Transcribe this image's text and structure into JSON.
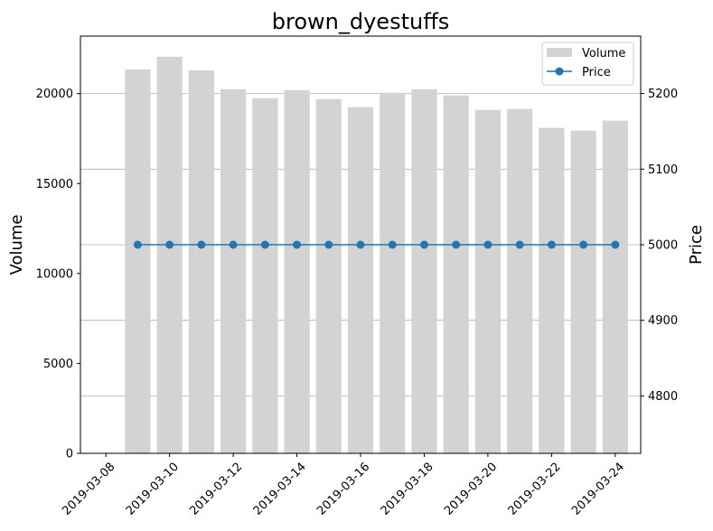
{
  "chart_data": {
    "type": "bar+line",
    "title": "brown_dyestuffs",
    "xlabel": "",
    "ylabel_left": "Volume",
    "ylabel_right": "Price",
    "dates": [
      "2019-03-09",
      "2019-03-10",
      "2019-03-11",
      "2019-03-12",
      "2019-03-13",
      "2019-03-14",
      "2019-03-15",
      "2019-03-16",
      "2019-03-17",
      "2019-03-18",
      "2019-03-19",
      "2019-03-20",
      "2019-03-21",
      "2019-03-22",
      "2019-03-23",
      "2019-03-24"
    ],
    "x_ticks": [
      "2019-03-08",
      "2019-03-10",
      "2019-03-12",
      "2019-03-14",
      "2019-03-16",
      "2019-03-18",
      "2019-03-20",
      "2019-03-22",
      "2019-03-24"
    ],
    "xlim": [
      "2019-03-08",
      "2019-03-24"
    ],
    "series": [
      {
        "name": "Volume",
        "kind": "bar",
        "axis": "left",
        "color": "#d3d3d3",
        "values": [
          21350,
          22050,
          21300,
          20250,
          19750,
          20200,
          19700,
          19250,
          20050,
          20250,
          19900,
          19100,
          19150,
          18100,
          17950,
          18500
        ]
      },
      {
        "name": "Price",
        "kind": "line",
        "axis": "right",
        "color": "#1f77b4",
        "values": [
          5000,
          5000,
          5000,
          5000,
          5000,
          5000,
          5000,
          5000,
          5000,
          5000,
          5000,
          5000,
          5000,
          5000,
          5000,
          5000
        ]
      }
    ],
    "y_left": {
      "ticks": [
        0,
        5000,
        10000,
        15000,
        20000
      ],
      "lim": [
        0,
        23200
      ]
    },
    "y_right": {
      "ticks": [
        4800,
        4900,
        5000,
        5100,
        5200
      ],
      "lim": [
        4724,
        5276
      ]
    },
    "grid": "horizontal lines at right-axis ticks",
    "legend": {
      "position": "top-right",
      "entries": [
        "Volume",
        "Price"
      ]
    }
  }
}
